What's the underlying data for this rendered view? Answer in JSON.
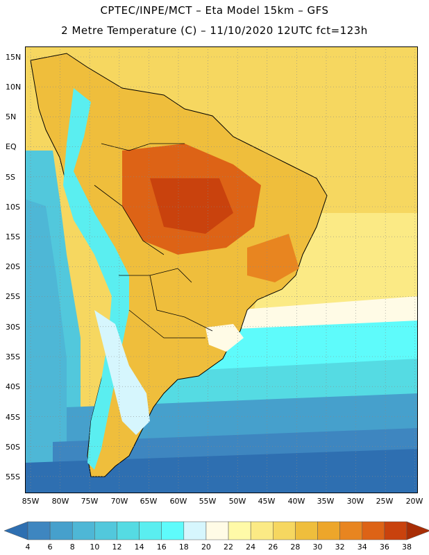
{
  "header": {
    "line1": "CPTEC/INPE/MCT –  Eta Model 15km – GFS",
    "line2": "2 Metre Temperature (C) – 11/10/2020 12UTC fct=123h"
  },
  "map": {
    "region": "South America",
    "lat_labels": [
      "15N",
      "10N",
      "5N",
      "EQ",
      "5S",
      "10S",
      "15S",
      "20S",
      "25S",
      "30S",
      "35S",
      "40S",
      "45S",
      "50S",
      "55S"
    ],
    "lon_labels": [
      "85W",
      "80W",
      "75W",
      "70W",
      "65W",
      "60W",
      "55W",
      "50W",
      "45W",
      "40W",
      "35W",
      "30W",
      "25W",
      "20W"
    ]
  },
  "colorbar": {
    "labels": [
      "4",
      "6",
      "8",
      "10",
      "12",
      "14",
      "16",
      "18",
      "20",
      "22",
      "24",
      "26",
      "28",
      "30",
      "32",
      "34",
      "36",
      "38"
    ],
    "colors": [
      "#2e6fb1",
      "#3e86c0",
      "#46a0cc",
      "#4eb7d6",
      "#52c8dc",
      "#55dbe3",
      "#5aeef0",
      "#5efbfb",
      "#d6f6fd",
      "#fffbe6",
      "#fffaa8",
      "#fbea85",
      "#f6d760",
      "#efbe3c",
      "#eda62a",
      "#e88520",
      "#dd6316",
      "#c9420d",
      "#a82d05"
    ]
  }
}
